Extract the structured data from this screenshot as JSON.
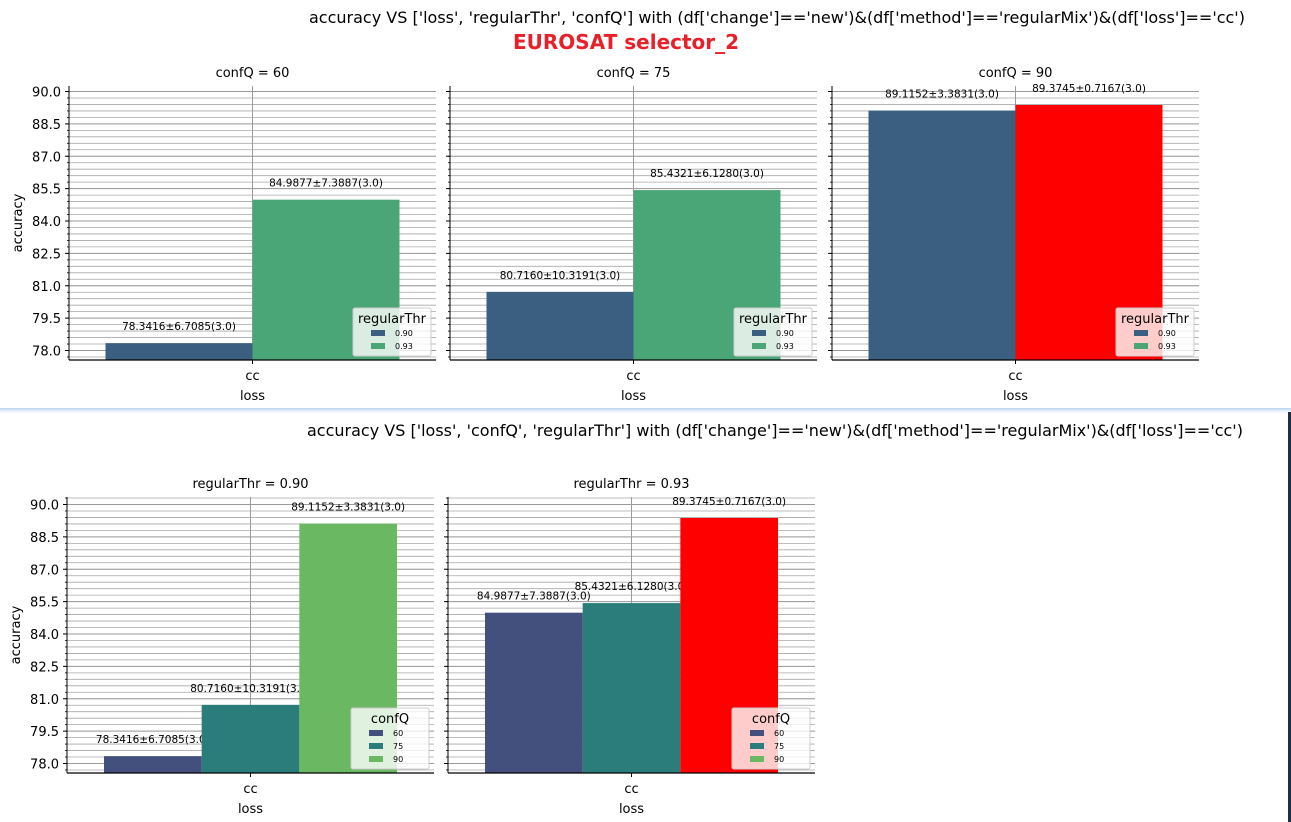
{
  "figures": [
    {
      "title": "accuracy VS ['loss', 'regularThr', 'confQ'] with (df['change']=='new')&(df['method']=='regularMix')&(df['loss']=='cc')",
      "subtitle": "EUROSAT selector_2"
    },
    {
      "title": "accuracy VS ['loss', 'confQ', 'regularThr'] with (df['change']=='new')&(df['method']=='regularMix')&(df['loss']=='cc')"
    }
  ],
  "colors": {
    "regularThr_0.90": "#3b5f80",
    "regularThr_0.93": "#4aa676",
    "confQ_60": "#434f7d",
    "confQ_75": "#2a7d7a",
    "confQ_90": "#6ab862",
    "best": "#ff0000"
  },
  "chart_data": [
    {
      "type": "bar",
      "panel_title": "confQ = 60",
      "xlabel": "loss",
      "ylabel": "accuracy",
      "categories": [
        "cc"
      ],
      "ylim": [
        77.6,
        90.3
      ],
      "yticks": [
        "78.0",
        "79.5",
        "81.0",
        "82.5",
        "84.0",
        "85.5",
        "87.0",
        "88.5",
        "90.0"
      ],
      "legend": {
        "title": "regularThr",
        "position": "lower-right",
        "entries": [
          "0.90",
          "0.93"
        ]
      },
      "series": [
        {
          "name": "0.90",
          "values": [
            78.3416
          ],
          "label": "78.3416±6.7085(3.0)",
          "color_key": "regularThr_0.90"
        },
        {
          "name": "0.93",
          "values": [
            84.9877
          ],
          "label": "84.9877±7.3887(3.0)",
          "color_key": "regularThr_0.93"
        }
      ]
    },
    {
      "type": "bar",
      "panel_title": "confQ = 75",
      "xlabel": "loss",
      "ylabel": "",
      "categories": [
        "cc"
      ],
      "ylim": [
        77.6,
        90.3
      ],
      "yticks": [],
      "legend": {
        "title": "regularThr",
        "position": "lower-right",
        "entries": [
          "0.90",
          "0.93"
        ]
      },
      "series": [
        {
          "name": "0.90",
          "values": [
            80.716
          ],
          "label": "80.7160±10.3191(3.0)",
          "color_key": "regularThr_0.90"
        },
        {
          "name": "0.93",
          "values": [
            85.4321
          ],
          "label": "85.4321±6.1280(3.0)",
          "color_key": "regularThr_0.93"
        }
      ]
    },
    {
      "type": "bar",
      "panel_title": "confQ = 90",
      "xlabel": "loss",
      "ylabel": "",
      "categories": [
        "cc"
      ],
      "ylim": [
        77.6,
        90.3
      ],
      "yticks": [],
      "legend": {
        "title": "regularThr",
        "position": "lower-right",
        "entries": [
          "0.90",
          "0.93"
        ]
      },
      "series": [
        {
          "name": "0.90",
          "values": [
            89.1152
          ],
          "label": "89.1152±3.3831(3.0)",
          "color_key": "regularThr_0.90"
        },
        {
          "name": "0.93",
          "values": [
            89.3745
          ],
          "label": "89.3745±0.7167(3.0)",
          "color_key": "best"
        }
      ]
    },
    {
      "type": "bar",
      "panel_title": "regularThr = 0.90",
      "xlabel": "loss",
      "ylabel": "accuracy",
      "categories": [
        "cc"
      ],
      "ylim": [
        77.6,
        90.3
      ],
      "yticks": [
        "78.0",
        "79.5",
        "81.0",
        "82.5",
        "84.0",
        "85.5",
        "87.0",
        "88.5",
        "90.0"
      ],
      "legend": {
        "title": "confQ",
        "position": "lower-right",
        "entries": [
          "60",
          "75",
          "90"
        ]
      },
      "series": [
        {
          "name": "60",
          "values": [
            78.3416
          ],
          "label": "78.3416±6.7085(3.0)",
          "color_key": "confQ_60"
        },
        {
          "name": "75",
          "values": [
            80.716
          ],
          "label": "80.7160±10.3191(3.0)",
          "color_key": "confQ_75"
        },
        {
          "name": "90",
          "values": [
            89.1152
          ],
          "label": "89.1152±3.3831(3.0)",
          "color_key": "confQ_90"
        }
      ]
    },
    {
      "type": "bar",
      "panel_title": "regularThr = 0.93",
      "xlabel": "loss",
      "ylabel": "",
      "categories": [
        "cc"
      ],
      "ylim": [
        77.6,
        90.3
      ],
      "yticks": [],
      "legend": {
        "title": "confQ",
        "position": "lower-right",
        "entries": [
          "60",
          "75",
          "90"
        ]
      },
      "series": [
        {
          "name": "60",
          "values": [
            84.9877
          ],
          "label": "84.9877±7.3887(3.0)",
          "color_key": "confQ_60"
        },
        {
          "name": "75",
          "values": [
            85.4321
          ],
          "label": "85.4321±6.1280(3.0)",
          "color_key": "confQ_75"
        },
        {
          "name": "90",
          "values": [
            89.3745
          ],
          "label": "89.3745±0.7167(3.0)",
          "color_key": "best"
        }
      ]
    }
  ]
}
